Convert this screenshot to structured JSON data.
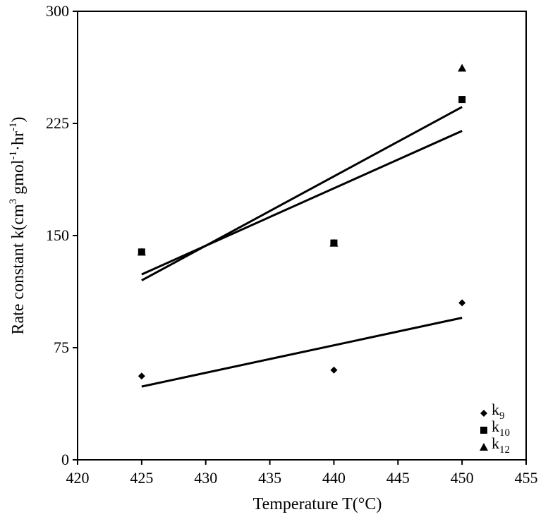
{
  "chart_data": {
    "type": "scatter",
    "xlabel": "Temperature T(°C)",
    "ylabel": {
      "prefix": "Rate constant k(cm",
      "sup1": "3",
      "mid1": " gmol",
      "sup2": "-1",
      "mid2": "·hr",
      "sup3": "-1",
      "suffix": ")"
    },
    "xlim": [
      420,
      455
    ],
    "ylim": [
      0,
      300
    ],
    "x_ticks": [
      "420",
      "425",
      "430",
      "435",
      "440",
      "445",
      "450",
      "455"
    ],
    "y_ticks": [
      "0",
      "75",
      "150",
      "225",
      "300"
    ],
    "grid": false,
    "legend_position": "bottom-right",
    "series": [
      {
        "name": "k9",
        "label": "k",
        "label_sub": "9",
        "marker": "diamond",
        "points": [
          [
            425,
            56
          ],
          [
            440,
            60
          ],
          [
            450,
            105
          ]
        ],
        "fit_line": [
          [
            425,
            49
          ],
          [
            450,
            95
          ]
        ]
      },
      {
        "name": "k10",
        "label": "k",
        "label_sub": "10",
        "marker": "square",
        "points": [
          [
            425,
            139
          ],
          [
            440,
            145
          ],
          [
            450,
            241
          ]
        ],
        "fit_line": [
          [
            425,
            124
          ],
          [
            450,
            220
          ]
        ]
      },
      {
        "name": "k12",
        "label": "k",
        "label_sub": "12",
        "marker": "triangle",
        "points": [
          [
            425,
            139
          ],
          [
            440,
            145
          ],
          [
            450,
            262
          ]
        ],
        "fit_line": [
          [
            425,
            120
          ],
          [
            450,
            236
          ]
        ]
      }
    ]
  }
}
